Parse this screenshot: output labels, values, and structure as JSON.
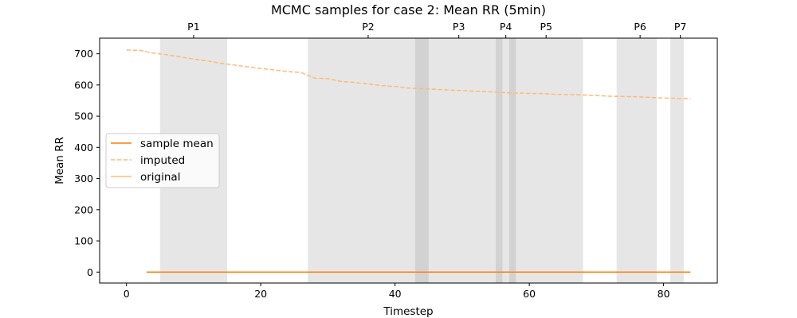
{
  "chart_data": {
    "type": "line",
    "title": "MCMC samples for case 2: Mean RR (5min)",
    "xlabel": "Timestep",
    "ylabel": "Mean RR",
    "xlim": [
      -4,
      88
    ],
    "ylim": [
      -35,
      750
    ],
    "xticks": [
      0,
      20,
      40,
      60,
      80
    ],
    "yticks": [
      0,
      100,
      200,
      300,
      400,
      500,
      600,
      700
    ],
    "grid": false,
    "legend_position": "center-left",
    "phases": [
      {
        "label": "P1",
        "start": 5,
        "end": 15,
        "label_x": 10
      },
      {
        "label": "P2",
        "start": 27,
        "end": 45,
        "label_x": 36
      },
      {
        "label": "P3",
        "start": 43,
        "end": 56,
        "label_x": 49.5
      },
      {
        "label": "P4",
        "start": 55,
        "end": 58,
        "label_x": 56.5
      },
      {
        "label": "P5",
        "start": 57,
        "end": 68,
        "label_x": 62.5
      },
      {
        "label": "P6",
        "start": 73,
        "end": 79,
        "label_x": 76.5
      },
      {
        "label": "P7",
        "start": 81,
        "end": 83,
        "label_x": 82.5
      }
    ],
    "series": [
      {
        "name": "sample mean",
        "color": "#ff7f0e",
        "style": "solid",
        "x": [
          3,
          84
        ],
        "y": [
          0,
          0
        ]
      },
      {
        "name": "imputed",
        "color": "#ffbb78",
        "style": "dashed",
        "x": [
          0,
          2,
          4,
          6,
          8,
          10,
          12,
          14,
          16,
          18,
          20,
          22,
          24,
          26,
          28,
          30,
          32,
          34,
          36,
          38,
          40,
          42,
          44,
          46,
          48,
          50,
          52,
          54,
          56,
          58,
          60,
          62,
          64,
          66,
          68,
          70,
          72,
          74,
          76,
          78,
          80,
          82,
          84
        ],
        "y": [
          712,
          711,
          702,
          697,
          690,
          683,
          677,
          670,
          664,
          658,
          653,
          648,
          643,
          640,
          622,
          620,
          611,
          608,
          603,
          598,
          595,
          590,
          588,
          586,
          584,
          582,
          580,
          578,
          576,
          574,
          573,
          572,
          570,
          569,
          568,
          566,
          564,
          563,
          562,
          560,
          558,
          557,
          556
        ]
      },
      {
        "name": "original",
        "color": "#ffbb78",
        "style": "solid",
        "x": [],
        "y": []
      }
    ]
  }
}
